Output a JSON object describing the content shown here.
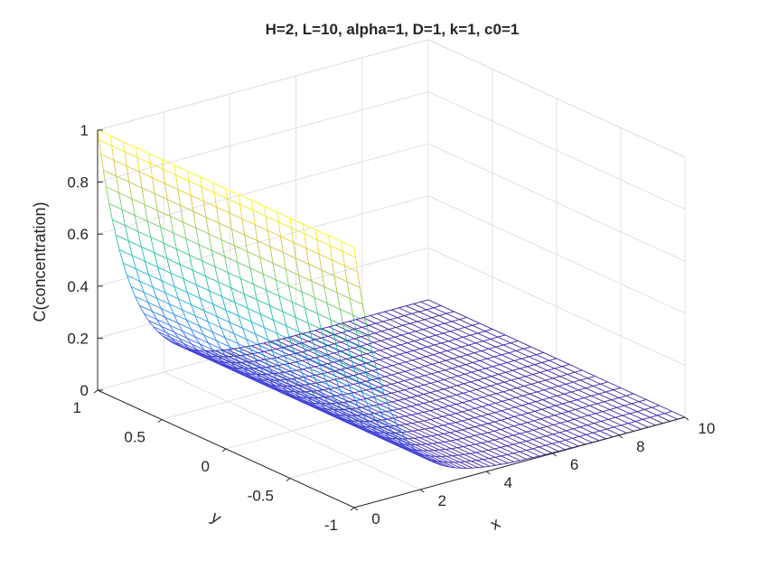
{
  "chart_data": {
    "type": "surface",
    "title": "H=2, L=10, alpha=1, D=1, k=1, c0=1",
    "xlabel": "x",
    "ylabel": "y",
    "zlabel": "C(concentration)",
    "xlim": [
      0,
      10
    ],
    "ylim": [
      -1,
      1
    ],
    "zlim": [
      0,
      1
    ],
    "x_ticks": [
      "0",
      "2",
      "4",
      "6",
      "8",
      "10"
    ],
    "y_ticks": [
      "-1",
      "-0.5",
      "0",
      "0.5",
      "1"
    ],
    "z_ticks": [
      "0",
      "0.2",
      "0.4",
      "0.6",
      "0.8",
      "1"
    ],
    "x_tick_values": [
      0,
      2,
      4,
      6,
      8,
      10
    ],
    "y_tick_values": [
      -1,
      -0.5,
      0,
      0.5,
      1
    ],
    "z_tick_values": [
      0,
      0.2,
      0.4,
      0.6,
      0.8,
      1
    ],
    "grid": true,
    "colormap": "parula",
    "surface": {
      "x": [
        0,
        0.25,
        0.5,
        0.75,
        1,
        1.25,
        1.5,
        2,
        2.5,
        3,
        4,
        5,
        6,
        7,
        8,
        9,
        10
      ],
      "y_count": 21,
      "c_at_y": [
        1,
        0.779,
        0.607,
        0.472,
        0.368,
        0.287,
        0.223,
        0.135,
        0.082,
        0.05,
        0.018,
        0.007,
        0.002,
        0.001,
        0,
        0,
        0
      ],
      "note_y": "C is uniform in y"
    }
  }
}
